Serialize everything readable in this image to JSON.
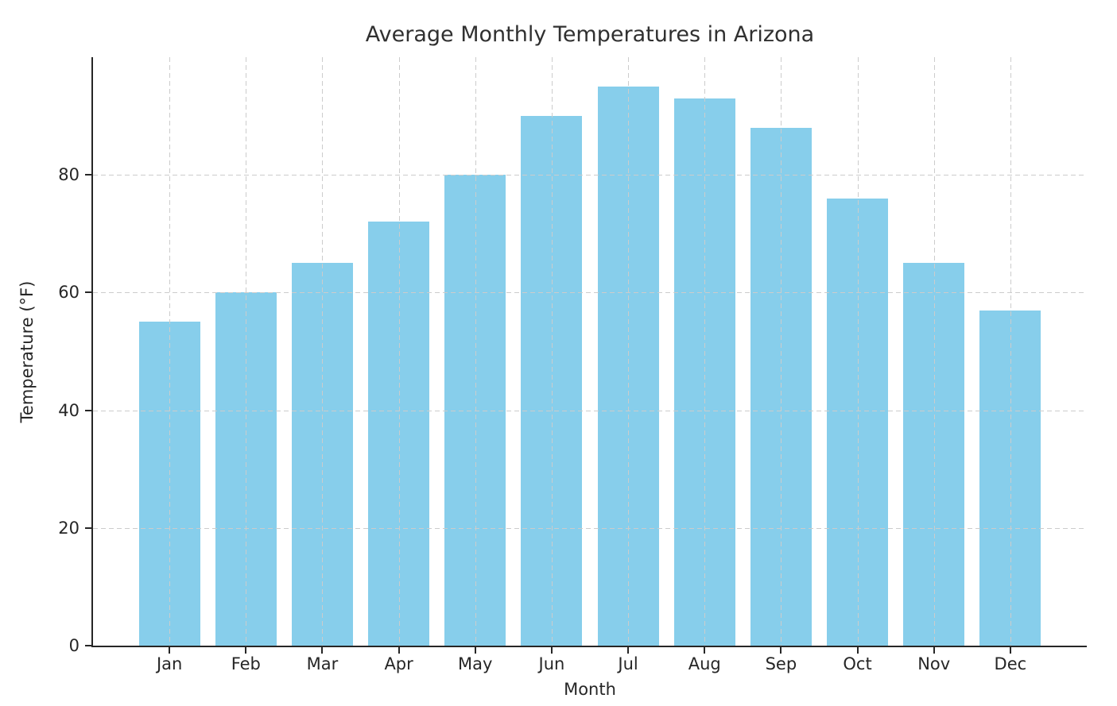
{
  "chart_data": {
    "type": "bar",
    "title": "Average Monthly Temperatures in Arizona",
    "xlabel": "Month",
    "ylabel": "Temperature (°F)",
    "categories": [
      "Jan",
      "Feb",
      "Mar",
      "Apr",
      "May",
      "Jun",
      "Jul",
      "Aug",
      "Sep",
      "Oct",
      "Nov",
      "Dec"
    ],
    "values": [
      55,
      60,
      65,
      72,
      80,
      90,
      95,
      93,
      88,
      76,
      65,
      57
    ],
    "ylim": [
      0,
      100
    ],
    "yticks": [
      0,
      20,
      40,
      60,
      80
    ],
    "bar_color": "#87CEEB",
    "grid": "dashed, both axes, light gray, drawn over bars",
    "legend": "none",
    "spines": "left and bottom only"
  }
}
